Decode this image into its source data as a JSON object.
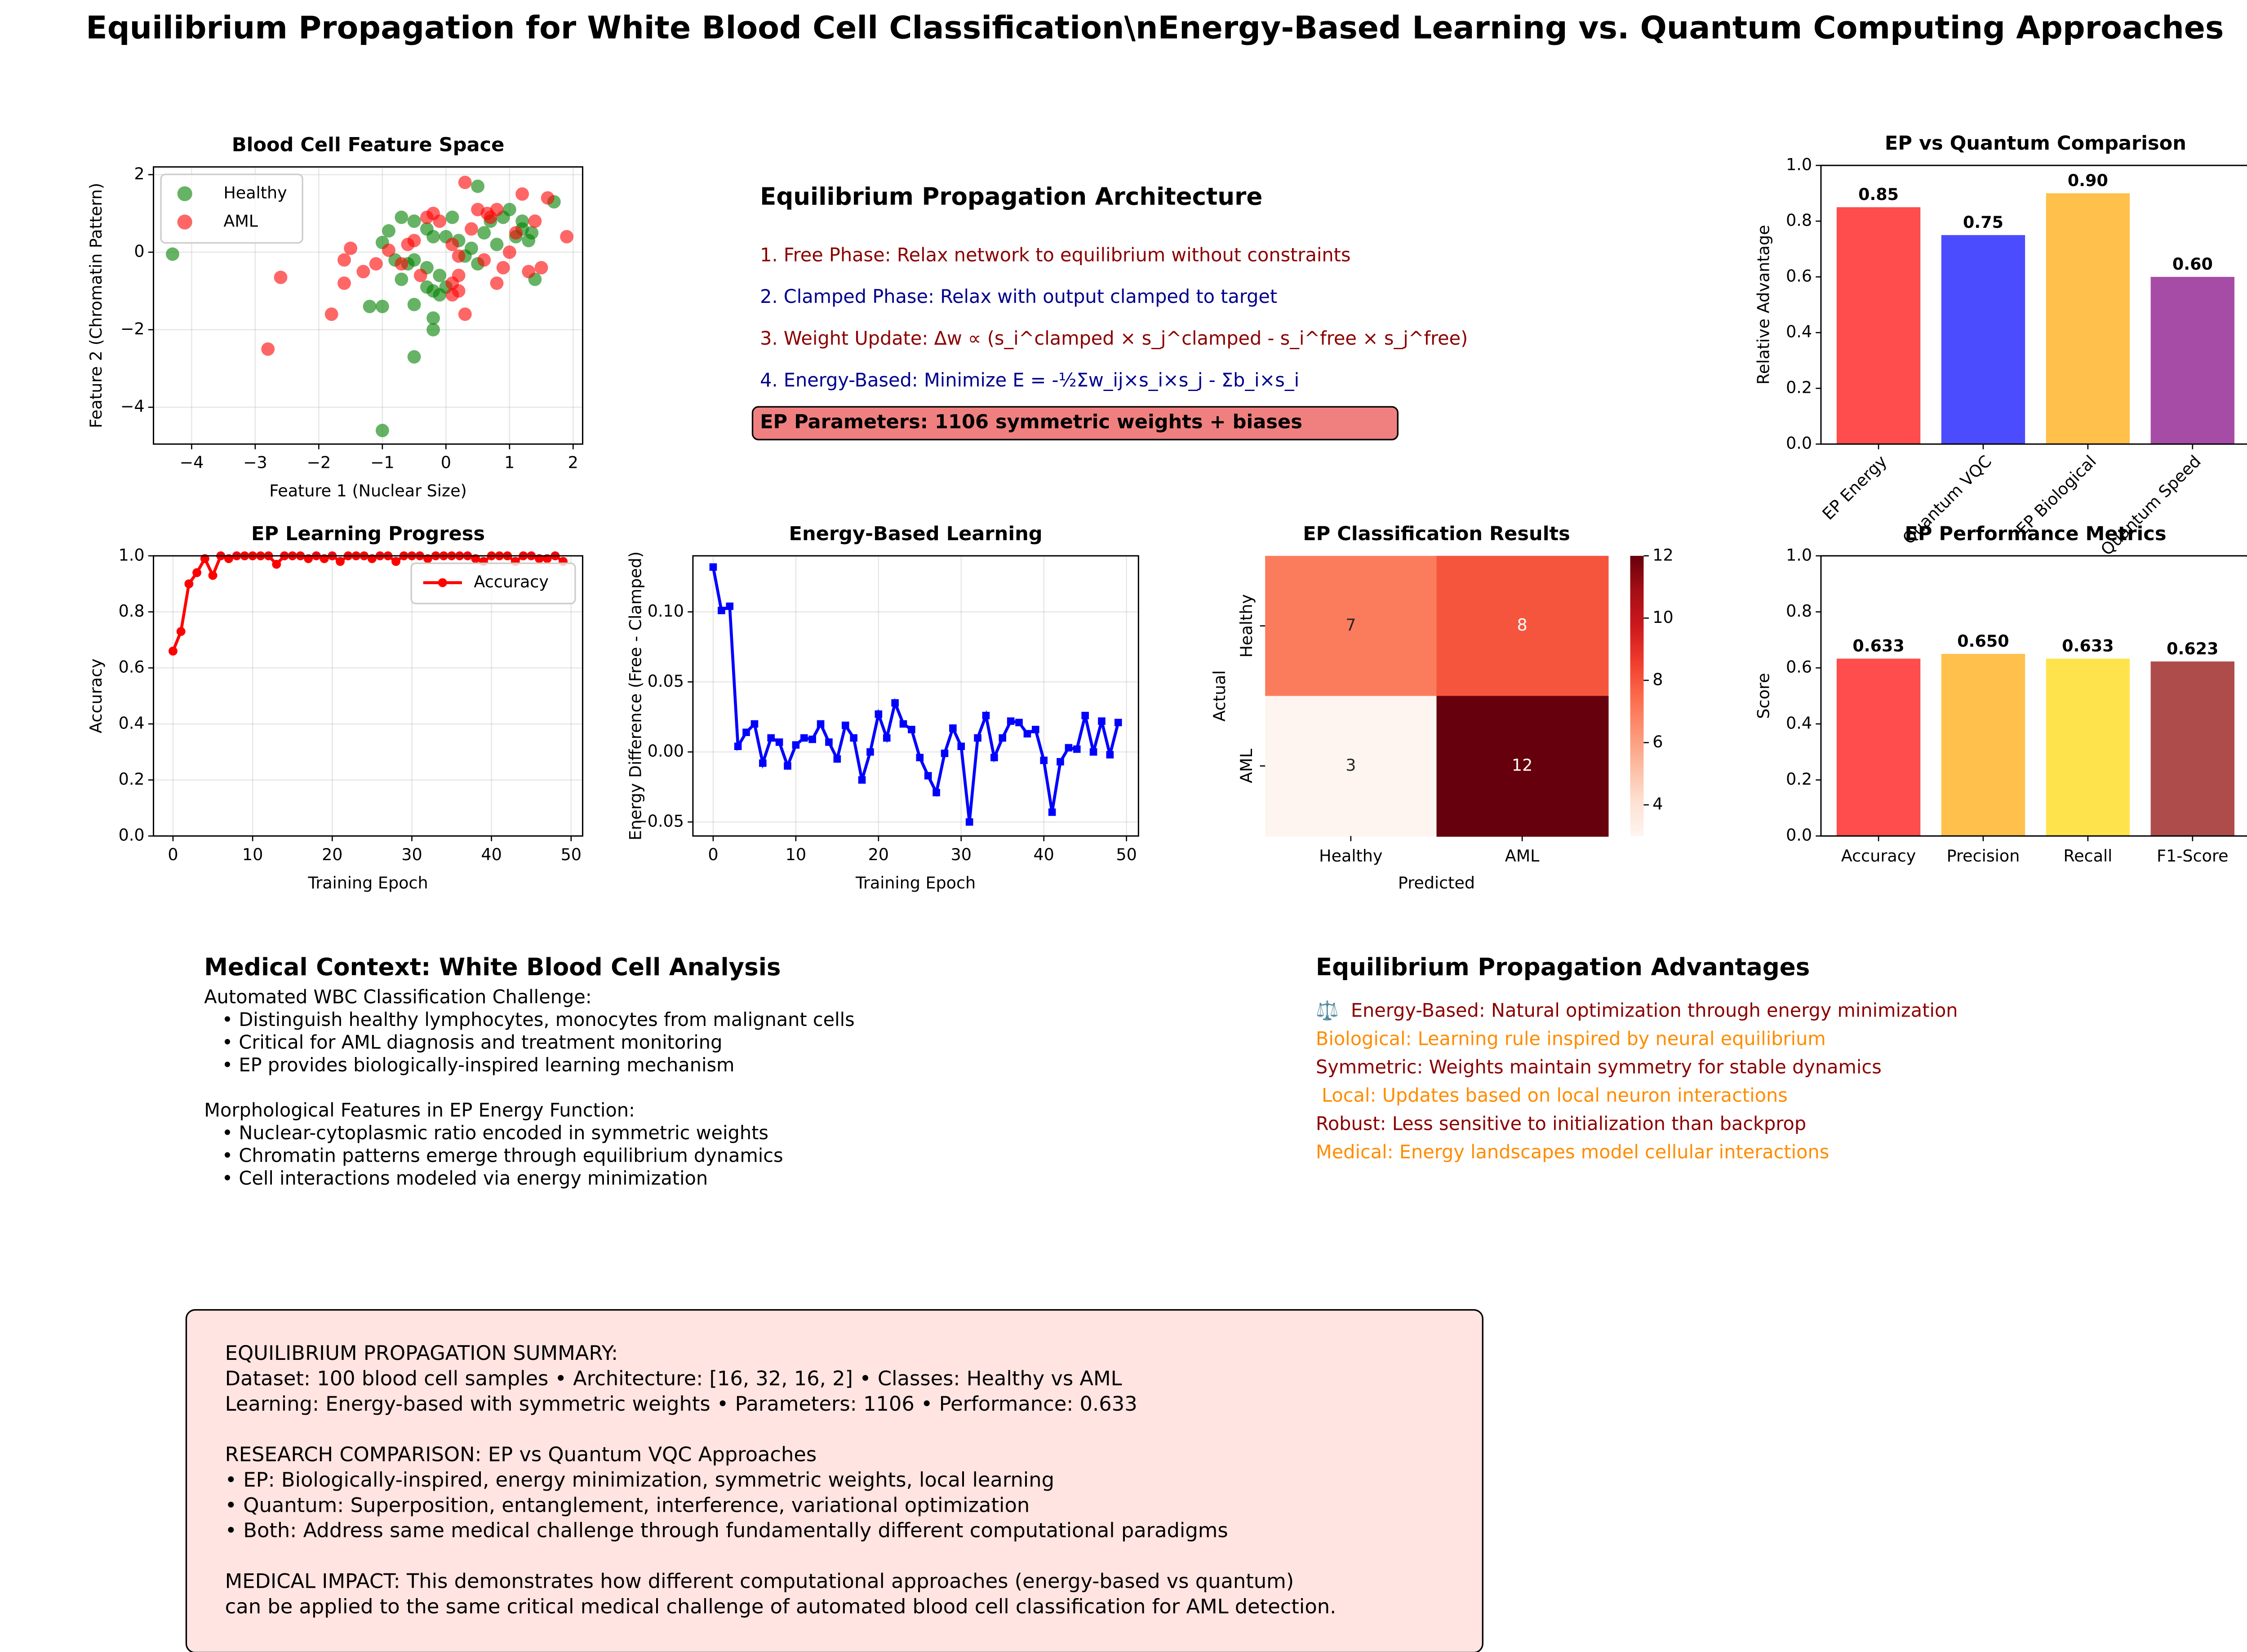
{
  "title": "Equilibrium Propagation for White Blood Cell Classification\\nEnergy-Based Learning vs. Quantum Computing Approaches",
  "chart_data": [
    {
      "type": "scatter",
      "title": "Blood Cell Feature Space",
      "xlabel": "Feature 1 (Nuclear Size)",
      "ylabel": "Feature 2 (Chromatin Pattern)",
      "xlim": [
        -4.6,
        2.15
      ],
      "ylim": [
        -4.95,
        2.2
      ],
      "xticks": [
        {
          "value": -4,
          "label": "−4"
        },
        {
          "value": -3,
          "label": "−3"
        },
        {
          "value": -2,
          "label": "−2"
        },
        {
          "value": -1,
          "label": "−1"
        },
        0,
        1,
        2
      ],
      "yticks": [
        {
          "value": -4,
          "label": "−4"
        },
        {
          "value": -2,
          "label": "−2"
        },
        0,
        2
      ],
      "grid": true,
      "legend": "upper left",
      "series": [
        {
          "name": "Healthy",
          "color": "#008000",
          "x": [
            -4.3,
            -1,
            -0.5,
            -0.2,
            -0.2,
            -1.2,
            -1,
            -0.5,
            -0.7,
            -0.3,
            -0.2,
            -0.1,
            0,
            -0.1,
            -0.3,
            -0.5,
            -0.6,
            -0.8,
            -1,
            -0.9,
            -0.7,
            -0.5,
            -0.3,
            -0.2,
            0,
            0.1,
            0.2,
            0.4,
            0.5,
            0.6,
            0.7,
            0.8,
            0.9,
            1,
            1.1,
            1.2,
            1.3,
            1.35,
            1.4,
            1.7,
            0.5,
            1.2,
            0.3
          ],
          "y": [
            -0.05,
            -4.6,
            -2.7,
            -2.0,
            -1.7,
            -1.4,
            -1.4,
            -1.35,
            -0.7,
            -0.9,
            -1.0,
            -1.1,
            -0.9,
            -0.6,
            -0.4,
            -0.2,
            -0.3,
            -0.2,
            0.25,
            0.55,
            0.9,
            0.8,
            0.6,
            0.4,
            0.4,
            0.9,
            0.3,
            0.1,
            1.7,
            0.5,
            0.8,
            0.2,
            0.9,
            1.1,
            0.4,
            0.6,
            0.3,
            0.5,
            -0.7,
            1.3,
            -0.3,
            0.8,
            -0.1
          ]
        },
        {
          "name": "AML",
          "color": "#ff0000",
          "x": [
            -2.8,
            -2.6,
            -1.8,
            -1.6,
            -1.6,
            -1.5,
            -1.3,
            -1.1,
            -0.9,
            -0.7,
            -0.6,
            -0.5,
            -0.4,
            -0.3,
            -0.2,
            -0.1,
            0.1,
            0.2,
            0.2,
            0.3,
            0.1,
            0.2,
            0.3,
            0.4,
            0.5,
            0.6,
            0.7,
            0.8,
            0.9,
            0.8,
            1.0,
            1.1,
            1.2,
            1.3,
            1.4,
            1.5,
            1.6,
            1.9,
            0.1,
            0.65
          ],
          "y": [
            -2.5,
            -0.65,
            -1.6,
            -0.8,
            -0.2,
            0.1,
            -0.5,
            -0.3,
            0.05,
            -0.3,
            0.2,
            0.3,
            -0.6,
            0.9,
            1.0,
            0.8,
            -0.8,
            -0.6,
            -1.0,
            -1.6,
            0.2,
            -0.1,
            1.8,
            0.6,
            1.1,
            -0.2,
            0.9,
            1.1,
            -0.4,
            -0.8,
            0.0,
            0.5,
            1.5,
            -0.5,
            0.8,
            -0.4,
            1.4,
            0.4,
            -1.1,
            1.0
          ]
        }
      ]
    },
    {
      "type": "line",
      "title": "EP Learning Progress",
      "xlabel": "Training Epoch",
      "ylabel": "Accuracy",
      "xlim": [
        -2.45,
        51.45
      ],
      "ylim": [
        0,
        1
      ],
      "xticks": [
        0,
        10,
        20,
        30,
        40,
        50
      ],
      "yticks": [
        {
          "value": 0,
          "label": "0.0"
        },
        {
          "value": 0.2,
          "label": "0.2"
        },
        {
          "value": 0.4,
          "label": "0.4"
        },
        {
          "value": 0.6,
          "label": "0.6"
        },
        {
          "value": 0.8,
          "label": "0.8"
        },
        {
          "value": 1,
          "label": "1.0"
        }
      ],
      "grid": true,
      "legend": "upper right",
      "marker": "o",
      "x": [
        0,
        1,
        2,
        3,
        4,
        5,
        6,
        7,
        8,
        9,
        10,
        11,
        12,
        13,
        14,
        15,
        16,
        17,
        18,
        19,
        20,
        21,
        22,
        23,
        24,
        25,
        26,
        27,
        28,
        29,
        30,
        31,
        32,
        33,
        34,
        35,
        36,
        37,
        38,
        39,
        40,
        41,
        42,
        43,
        44,
        45,
        46,
        47,
        48,
        49
      ],
      "series": [
        {
          "name": "Accuracy",
          "color": "#ff0000",
          "values": [
            0.66,
            0.73,
            0.9,
            0.94,
            0.99,
            0.93,
            1,
            0.99,
            1,
            1,
            1,
            1,
            1,
            0.97,
            1,
            1,
            1,
            0.99,
            1,
            0.99,
            1,
            0.98,
            1,
            1,
            1,
            0.99,
            1,
            1,
            0.98,
            1,
            1,
            1,
            0.99,
            1,
            1,
            1,
            1,
            1,
            0.99,
            0.98,
            1,
            1,
            1,
            0.98,
            1,
            1,
            0.99,
            0.99,
            1,
            0.98
          ]
        }
      ]
    },
    {
      "type": "line",
      "title": "Energy-Based Learning",
      "xlabel": "Training Epoch",
      "ylabel": "Energy Difference (Free - Clamped)",
      "xlim": [
        -2.45,
        51.45
      ],
      "ylim": [
        -0.06,
        0.14
      ],
      "xticks": [
        0,
        10,
        20,
        30,
        40,
        50
      ],
      "yticks": [
        {
          "value": -0.05,
          "label": "−0.05"
        },
        {
          "value": 0,
          "label": "0.00"
        },
        {
          "value": 0.05,
          "label": "0.05"
        },
        {
          "value": 0.1,
          "label": "0.10"
        }
      ],
      "grid": true,
      "marker": "s",
      "x": [
        0,
        1,
        2,
        3,
        4,
        5,
        6,
        7,
        8,
        9,
        10,
        11,
        12,
        13,
        14,
        15,
        16,
        17,
        18,
        19,
        20,
        21,
        22,
        23,
        24,
        25,
        26,
        27,
        28,
        29,
        30,
        31,
        32,
        33,
        34,
        35,
        36,
        37,
        38,
        39,
        40,
        41,
        42,
        43,
        44,
        45,
        46,
        47,
        48,
        49
      ],
      "series": [
        {
          "name": "Energy Difference",
          "color": "#0000ff",
          "values": [
            0.132,
            0.101,
            0.104,
            0.004,
            0.014,
            0.02,
            -0.008,
            0.01,
            0.007,
            -0.01,
            0.005,
            0.01,
            0.009,
            0.02,
            0.007,
            -0.005,
            0.019,
            0.01,
            -0.02,
            0,
            0.027,
            0.01,
            0.035,
            0.02,
            0.016,
            -0.004,
            -0.017,
            -0.029,
            -0.001,
            0.017,
            0.004,
            -0.05,
            0.01,
            0.026,
            -0.004,
            0.01,
            0.022,
            0.021,
            0.013,
            0.016,
            -0.006,
            -0.043,
            -0.007,
            0.003,
            0.002,
            0.026,
            0,
            0.022,
            -0.002,
            0.021
          ]
        }
      ]
    },
    {
      "type": "heatmap",
      "title": "EP Classification Results",
      "xlabel": "Predicted",
      "ylabel": "Actual",
      "x_categories": [
        "Healthy",
        "AML"
      ],
      "y_categories": [
        "Healthy",
        "AML"
      ],
      "values": [
        [
          7,
          8
        ],
        [
          3,
          12
        ]
      ],
      "colormap": "Reds",
      "clim": [
        3,
        12
      ],
      "cticks": [
        4,
        6,
        8,
        10,
        12
      ]
    },
    {
      "type": "bar",
      "title": "EP vs Quantum Comparison",
      "ylabel": "Relative Advantage",
      "categories": [
        "EP Energy",
        "Quantum VQC",
        "EP Biological",
        "Quantum Speed"
      ],
      "values": [
        0.85,
        0.75,
        0.9,
        0.6
      ],
      "value_labels": [
        "0.85",
        "0.75",
        "0.90",
        "0.60"
      ],
      "colors": [
        "#ff0000",
        "#0000ff",
        "#ffa500",
        "#800080"
      ],
      "ylim": [
        0,
        1
      ],
      "yticks": [
        {
          "value": 0,
          "label": "0.0"
        },
        {
          "value": 0.2,
          "label": "0.2"
        },
        {
          "value": 0.4,
          "label": "0.4"
        },
        {
          "value": 0.6,
          "label": "0.6"
        },
        {
          "value": 0.8,
          "label": "0.8"
        },
        {
          "value": 1,
          "label": "1.0"
        }
      ]
    },
    {
      "type": "bar",
      "title": "EP Performance Metrics",
      "ylabel": "Score",
      "categories": [
        "Accuracy",
        "Precision",
        "Recall",
        "F1-Score"
      ],
      "values": [
        0.633,
        0.65,
        0.633,
        0.623
      ],
      "value_labels": [
        "0.633",
        "0.650",
        "0.633",
        "0.623"
      ],
      "colors": [
        "#ff0000",
        "#ffa500",
        "#ffd700",
        "#8b0000"
      ],
      "ylim": [
        0,
        1
      ],
      "yticks": [
        {
          "value": 0,
          "label": "0.0"
        },
        {
          "value": 0.2,
          "label": "0.2"
        },
        {
          "value": 0.4,
          "label": "0.4"
        },
        {
          "value": 0.6,
          "label": "0.6"
        },
        {
          "value": 0.8,
          "label": "0.8"
        },
        {
          "value": 1,
          "label": "1.0"
        }
      ]
    }
  ],
  "architecture": {
    "title": "Equilibrium Propagation Architecture",
    "steps": [
      "1. Free Phase: Relax network to equilibrium without constraints",
      "2. Clamped Phase: Relax with output clamped to target",
      "3. Weight Update: Δw ∝ (s_i^clamped × s_j^clamped - s_i^free × s_j^free)",
      "4. Energy-Based: Minimize E = -½Σw_ij×s_i×s_j - Σb_i×s_i"
    ],
    "parameters": "EP Parameters: 1106 symmetric weights + biases"
  },
  "medical_context": {
    "title": "Medical Context: White Blood Cell Analysis",
    "lines": [
      "Automated WBC Classification Challenge:",
      "   • Distinguish healthy lymphocytes, monocytes from malignant cells",
      "   • Critical for AML diagnosis and treatment monitoring",
      "   • EP provides biologically-inspired learning mechanism",
      "",
      "Morphological Features in EP Energy Function:",
      "   • Nuclear-cytoplasmic ratio encoded in symmetric weights",
      "   • Chromatin patterns emerge through equilibrium dynamics",
      "   • Cell interactions modeled via energy minimization"
    ]
  },
  "advantages": {
    "title": "Equilibrium Propagation Advantages",
    "lines": [
      "⚖️  Energy-Based: Natural optimization through energy minimization",
      "Biological: Learning rule inspired by neural equilibrium",
      "Symmetric: Weights maintain symmetry for stable dynamics",
      " Local: Updates based on local neuron interactions",
      "Robust: Less sensitive to initialization than backprop",
      "Medical: Energy landscapes model cellular interactions"
    ]
  },
  "summary": {
    "lines": [
      "EQUILIBRIUM PROPAGATION SUMMARY:",
      "Dataset: 100 blood cell samples • Architecture: [16, 32, 16, 2] • Classes: Healthy vs AML",
      "Learning: Energy-based with symmetric weights • Parameters: 1106 • Performance: 0.633",
      "",
      "RESEARCH COMPARISON: EP vs Quantum VQC Approaches",
      "• EP: Biologically-inspired, energy minimization, symmetric weights, local learning",
      "• Quantum: Superposition, entanglement, interference, variational optimization",
      "• Both: Address same medical challenge through fundamentally different computational paradigms",
      "",
      "MEDICAL IMPACT: This demonstrates how different computational approaches (energy-based vs quantum)",
      "can be applied to the same critical medical challenge of automated blood cell classification for AML detection."
    ]
  }
}
